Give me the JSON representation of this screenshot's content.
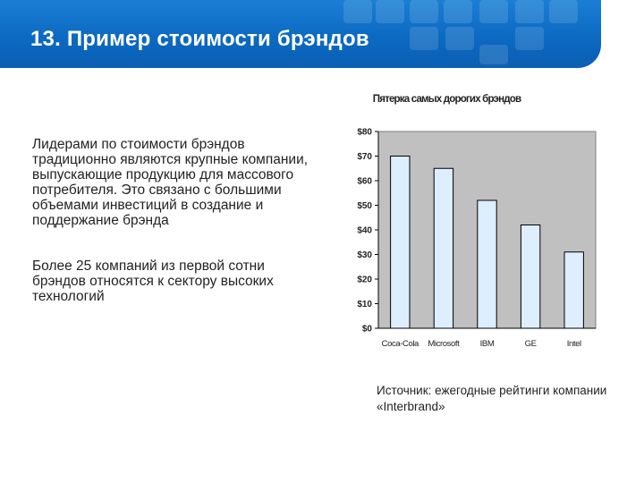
{
  "header": {
    "title": "13. Пример стоимости брэндов",
    "color": "#0c69c2"
  },
  "main": {
    "paragraphs": [
      "Лидерами по стоимости брэндов традиционно являются крупные компании, выпускающие продукцию для массового потребителя. Это связано с большими объемами инвестиций в создание и поддержание брэнда",
      "Более 25 компаний из первой сотни брэндов относятся к сектору высоких технологий"
    ],
    "source": "Источник: ежегодные рейтинги компании «Interbrand»"
  },
  "chart_data": {
    "type": "bar",
    "title": "Пятерка самых дорогих брэндов",
    "ylabel": "",
    "xlabel": "",
    "categories": [
      "Coca-Cola",
      "Microsoft",
      "IBM",
      "GE",
      "Intel"
    ],
    "values": [
      70,
      65,
      52,
      42,
      31
    ],
    "ylim": [
      0,
      80
    ],
    "yticks": [
      "$0",
      "$10",
      "$20",
      "$30",
      "$40",
      "$50",
      "$60",
      "$70",
      "$80"
    ],
    "grid": false,
    "plot_background": "#c0c0c0",
    "bar_color": "#ddeeff",
    "bar_edge": "#000000"
  }
}
